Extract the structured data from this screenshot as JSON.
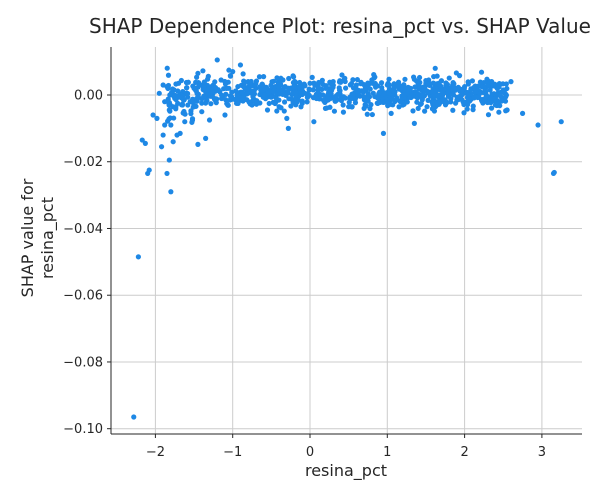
{
  "chart_data": {
    "type": "scatter",
    "title": "SHAP Dependence Plot: resina_pct vs. SHAP Value",
    "xlabel": "resina_pct",
    "ylabel": "SHAP value for\nresina_pct",
    "xlim": [
      -2.5,
      3.5
    ],
    "ylim": [
      -0.1015,
      0.0155
    ],
    "xticks": [
      -2,
      -1,
      0,
      1,
      2,
      3
    ],
    "xtick_labels": [
      "−2",
      "−1",
      "0",
      "1",
      "2",
      "3"
    ],
    "yticks": [
      0.0,
      -0.02,
      -0.04,
      -0.06,
      -0.08,
      -0.1
    ],
    "ytick_labels": [
      "0.00",
      "−0.02",
      "−0.04",
      "−0.06",
      "−0.08",
      "−0.10"
    ],
    "grid": true,
    "point_color": "#1e88e5",
    "series": [
      {
        "points": [
          [
            -2.28,
            -0.0965
          ],
          [
            -2.22,
            -0.0485
          ],
          [
            -2.17,
            -0.0135
          ],
          [
            -2.13,
            -0.0145
          ],
          [
            -2.1,
            -0.0235
          ],
          [
            -2.08,
            -0.0225
          ],
          [
            -2.03,
            -0.006
          ],
          [
            -1.98,
            -0.007
          ],
          [
            -1.92,
            -0.0155
          ],
          [
            -1.9,
            -0.012
          ],
          [
            -1.88,
            -0.009
          ],
          [
            -1.85,
            -0.0235
          ],
          [
            -1.82,
            -0.0195
          ],
          [
            -1.8,
            -0.029
          ],
          [
            -1.77,
            -0.014
          ],
          [
            -1.72,
            -0.012
          ],
          [
            -1.68,
            -0.0115
          ],
          [
            -1.62,
            -0.008
          ],
          [
            -1.45,
            -0.0148
          ],
          [
            -1.35,
            -0.013
          ],
          [
            -1.9,
            0.003
          ],
          [
            -1.85,
            0.0025
          ],
          [
            -1.95,
            0.0005
          ],
          [
            -1.88,
            -0.002
          ],
          [
            -1.82,
            -0.0045
          ],
          [
            -1.78,
            0.001
          ],
          [
            -1.75,
            -0.001
          ],
          [
            -1.7,
            0.0035
          ],
          [
            -1.65,
            -0.003
          ],
          [
            -1.6,
            0.0005
          ],
          [
            -1.55,
            -0.002
          ],
          [
            -1.5,
            0.002
          ],
          [
            -1.45,
            0.0065
          ],
          [
            -1.4,
            -0.005
          ],
          [
            -1.35,
            0.001
          ],
          [
            -1.3,
            -0.0075
          ],
          [
            -1.25,
            0.003
          ],
          [
            -1.2,
            0.0105
          ],
          [
            -1.15,
            0.0045
          ],
          [
            -1.1,
            -0.006
          ],
          [
            -1.05,
            0.002
          ],
          [
            -1.0,
            0.007
          ],
          [
            -0.95,
            -0.0025
          ],
          [
            -0.9,
            0.009
          ],
          [
            -0.85,
            0.0
          ],
          [
            -0.8,
            0.004
          ],
          [
            -0.75,
            -0.003
          ],
          [
            -0.7,
            0.002
          ],
          [
            -0.6,
            0.0055
          ],
          [
            -0.55,
            -0.0045
          ],
          [
            -0.45,
            0.0025
          ],
          [
            -0.4,
            -0.0035
          ],
          [
            -0.35,
            0.0045
          ],
          [
            -0.3,
            -0.007
          ],
          [
            -0.28,
            -0.01
          ],
          [
            -0.2,
            0.003
          ],
          [
            -0.1,
            -0.0025
          ],
          [
            0.0,
            0.0035
          ],
          [
            0.05,
            -0.008
          ],
          [
            0.1,
            0.0015
          ],
          [
            0.2,
            -0.004
          ],
          [
            0.3,
            0.004
          ],
          [
            0.4,
            -0.001
          ],
          [
            0.45,
            0.005
          ],
          [
            0.5,
            -0.0035
          ],
          [
            0.6,
            0.003
          ],
          [
            0.7,
            -0.004
          ],
          [
            0.8,
            0.0045
          ],
          [
            0.9,
            -0.002
          ],
          [
            0.95,
            -0.0115
          ],
          [
            1.0,
            0.003
          ],
          [
            1.05,
            -0.0055
          ],
          [
            1.1,
            0.001
          ],
          [
            1.2,
            -0.003
          ],
          [
            1.3,
            0.002
          ],
          [
            1.35,
            -0.0085
          ],
          [
            1.4,
            -0.004
          ],
          [
            1.5,
            0.003
          ],
          [
            1.6,
            0.0055
          ],
          [
            1.62,
            0.008
          ],
          [
            1.7,
            0.0
          ],
          [
            1.8,
            0.002
          ],
          [
            1.9,
            -0.0015
          ],
          [
            2.0,
            0.0025
          ],
          [
            2.1,
            -0.0005
          ],
          [
            2.2,
            0.001
          ],
          [
            2.3,
            -0.0015
          ],
          [
            2.35,
            0.004
          ],
          [
            2.4,
            -0.003
          ],
          [
            2.5,
            0.0015
          ],
          [
            2.55,
            -0.0045
          ],
          [
            2.6,
            0.004
          ],
          [
            2.75,
            -0.0055
          ],
          [
            2.95,
            -0.009
          ],
          [
            3.15,
            -0.0235
          ],
          [
            3.16,
            -0.0232
          ],
          [
            3.25,
            -0.008
          ]
        ]
      }
    ]
  }
}
